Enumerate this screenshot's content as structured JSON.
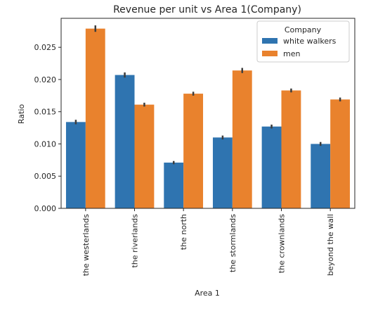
{
  "chart_data": {
    "type": "bar",
    "title": "Revenue per unit vs Area 1(Company)",
    "xlabel": "Area 1",
    "ylabel": "Ratio",
    "ylim": [
      0,
      0.0295
    ],
    "yticks": [
      "0.000",
      "0.005",
      "0.010",
      "0.015",
      "0.020",
      "0.025"
    ],
    "ytick_values": [
      0.0,
      0.005,
      0.01,
      0.015,
      0.02,
      0.025
    ],
    "categories": [
      "the westerlands",
      "the riverlands",
      "the north",
      "the stormlands",
      "the crownlands",
      "beyond the wall"
    ],
    "series": [
      {
        "name": "white walkers",
        "color": "#2f74b0",
        "values": [
          0.0134,
          0.0207,
          0.0071,
          0.011,
          0.0127,
          0.01
        ],
        "err": [
          0.00035,
          0.0004,
          0.00025,
          0.0003,
          0.0003,
          0.0003
        ]
      },
      {
        "name": "men",
        "color": "#e9822d",
        "values": [
          0.0279,
          0.0161,
          0.0178,
          0.0214,
          0.0183,
          0.0169
        ],
        "err": [
          0.0005,
          0.0003,
          0.0003,
          0.0004,
          0.0003,
          0.0003
        ]
      }
    ],
    "legend": {
      "title": "Company",
      "placement": "top-right"
    },
    "grid": false
  }
}
